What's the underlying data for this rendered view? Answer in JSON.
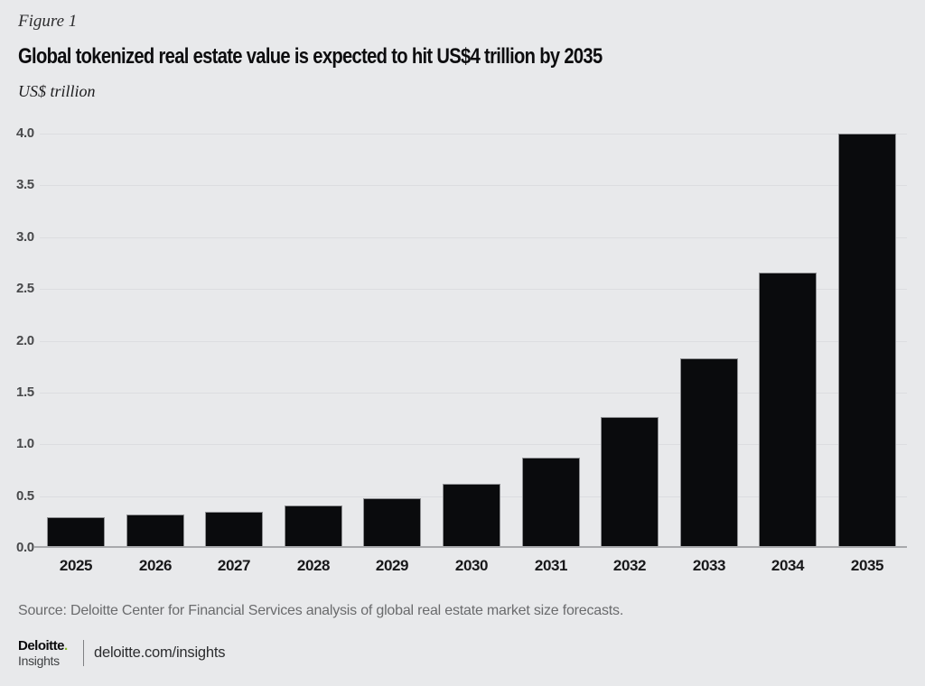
{
  "figure_label": "Figure 1",
  "title": "Global tokenized real estate value is expected to hit US$4 trillion by 2035",
  "unit_label": "US$ trillion",
  "chart_data": {
    "type": "bar",
    "title": "Global tokenized real estate value is expected to hit US$4 trillion by 2035",
    "categories": [
      "2025",
      "2026",
      "2027",
      "2028",
      "2029",
      "2030",
      "2031",
      "2032",
      "2033",
      "2034",
      "2035"
    ],
    "values": [
      0.3,
      0.32,
      0.35,
      0.41,
      0.48,
      0.62,
      0.87,
      1.26,
      1.83,
      2.66,
      4.0
    ],
    "xlabel": "",
    "ylabel": "US$ trillion",
    "ylim": [
      0,
      4.0
    ],
    "yticks": [
      0.0,
      0.5,
      1.0,
      1.5,
      2.0,
      2.5,
      3.0,
      3.5,
      4.0
    ],
    "ytick_labels": [
      "0.0",
      "0.5",
      "1.0",
      "1.5",
      "2.0",
      "2.5",
      "3.0",
      "3.5",
      "4.0"
    ],
    "grid": true,
    "legend": false,
    "bar_color": "#0a0b0d"
  },
  "source": "Source: Deloitte Center for Financial Services analysis of global real estate market size forecasts.",
  "footer": {
    "brand": "Deloitte",
    "brand_dot": ".",
    "brand_sub": "Insights",
    "url": "deloitte.com/insights"
  },
  "colors": {
    "background": "#e8e9eb",
    "bar": "#0a0b0d",
    "gridline": "#dcdde0",
    "axis_line": "#a8a9ac",
    "accent_green": "#86bc25"
  }
}
